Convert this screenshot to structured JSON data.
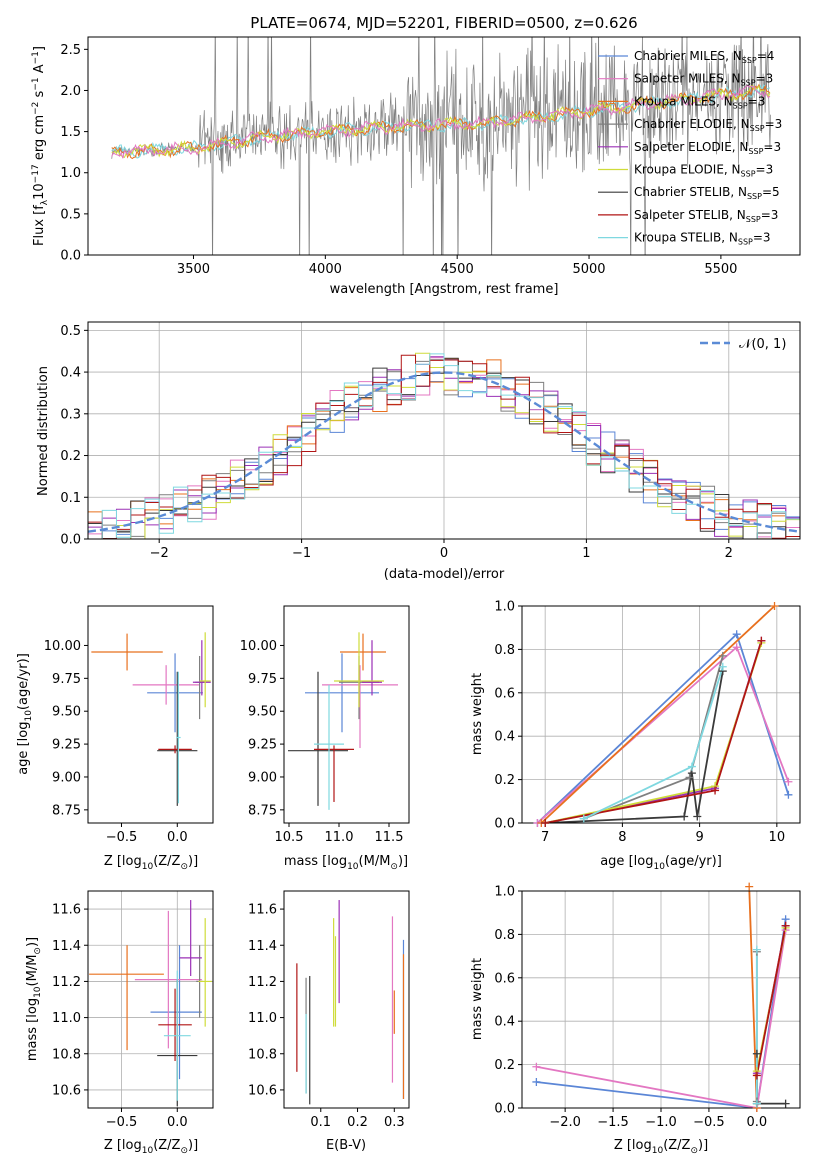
{
  "figure": {
    "title": "PLATE=0674, MJD=52201, FIBERID=0500, z=0.626"
  },
  "colors": {
    "Chabrier MILES": "#5b86d6",
    "Salpeter MILES": "#e377c2",
    "Kroupa MILES": "#e8701e",
    "Chabrier ELODIE": "#7f7f7f",
    "Salpeter ELODIE": "#9b30b6",
    "Kroupa ELODIE": "#cfdc3a",
    "Chabrier STELIB": "#3a3a3a",
    "Salpeter STELIB": "#b01515",
    "Kroupa STELIB": "#7fd8e0"
  },
  "chart_data": [
    {
      "id": "spectrum",
      "type": "line",
      "xlabel": "wavelength [Angstrom, rest frame]",
      "ylabel": "Flux [f_λ 10^-17 erg cm^-2 s^-1 A^-1]",
      "xlim": [
        3100,
        5800
      ],
      "ylim": [
        0,
        2.65
      ],
      "xticks": [
        3500,
        4000,
        4500,
        5000,
        5500
      ],
      "yticks": [
        0.0,
        0.5,
        1.0,
        1.5,
        2.0,
        2.5
      ],
      "legend_position": "top-right",
      "legend": [
        {
          "name": "Chabrier MILES",
          "nssp": "4"
        },
        {
          "name": "Salpeter MILES",
          "nssp": "3"
        },
        {
          "name": "Kroupa MILES",
          "nssp": "3"
        },
        {
          "name": "Chabrier ELODIE",
          "nssp": "3"
        },
        {
          "name": "Salpeter ELODIE",
          "nssp": "3"
        },
        {
          "name": "Kroupa ELODIE",
          "nssp": "3"
        },
        {
          "name": "Chabrier STELIB",
          "nssp": "5"
        },
        {
          "name": "Salpeter STELIB",
          "nssp": "3"
        },
        {
          "name": "Kroupa STELIB",
          "nssp": "3"
        }
      ],
      "data_series": {
        "name": "data",
        "wl_range": [
          3190,
          5690
        ],
        "trend": [
          [
            3200,
            1.25
          ],
          [
            3500,
            1.3
          ],
          [
            3800,
            1.45
          ],
          [
            4200,
            1.55
          ],
          [
            4600,
            1.6
          ],
          [
            5000,
            1.75
          ],
          [
            5500,
            1.95
          ],
          [
            5690,
            2.0
          ]
        ]
      },
      "model_trend": [
        [
          3200,
          1.25
        ],
        [
          3500,
          1.3
        ],
        [
          3800,
          1.45
        ],
        [
          4200,
          1.55
        ],
        [
          4600,
          1.6
        ],
        [
          5000,
          1.75
        ],
        [
          5500,
          1.95
        ],
        [
          5690,
          2.0
        ]
      ]
    },
    {
      "id": "residuals",
      "type": "line",
      "xlabel": "(data-model)/error",
      "ylabel": "Normed distribution",
      "xlim": [
        -2.5,
        2.5
      ],
      "ylim": [
        0,
        0.52
      ],
      "xticks": [
        -2,
        -1,
        0,
        1,
        2
      ],
      "yticks": [
        0.0,
        0.1,
        0.2,
        0.3,
        0.4,
        0.5
      ],
      "gauss_label": "𝒩(0, 1)",
      "legend_position": "top-right",
      "grid": true
    },
    {
      "id": "age_vs_Z",
      "type": "scatter",
      "xlabel": "Z [log10(Z/Z⊙)]",
      "ylabel": "age [log10(age/yr)]",
      "xlim": [
        -0.8,
        0.32
      ],
      "ylim": [
        8.65,
        10.3
      ],
      "xticks": [
        -0.5,
        0.0
      ],
      "yticks": [
        8.75,
        9.0,
        9.25,
        9.5,
        9.75,
        10.0
      ],
      "points": [
        {
          "series": "Chabrier MILES",
          "x": -0.02,
          "y": 9.64,
          "xerr": [
            0.25,
            0.25
          ],
          "yerr": [
            0.3,
            0.3
          ]
        },
        {
          "series": "Salpeter MILES",
          "x": -0.1,
          "y": 9.7,
          "xerr": [
            0.3,
            0.3
          ],
          "yerr": [
            0.15,
            0.15
          ]
        },
        {
          "series": "Kroupa MILES",
          "x": -0.45,
          "y": 9.95,
          "xerr": [
            0.32,
            0.32
          ],
          "yerr": [
            0.14,
            0.14
          ]
        },
        {
          "series": "Chabrier ELODIE",
          "x": 0.2,
          "y": 9.72,
          "xerr": [
            0.04,
            0.04
          ],
          "yerr": [
            0.28,
            0.2
          ]
        },
        {
          "series": "Salpeter ELODIE",
          "x": 0.22,
          "y": 9.72,
          "xerr": [
            0.08,
            0.08
          ],
          "yerr": [
            0.1,
            0.32
          ]
        },
        {
          "series": "Kroupa ELODIE",
          "x": 0.25,
          "y": 9.73,
          "xerr": [
            0.05,
            0.05
          ],
          "yerr": [
            0.2,
            0.37
          ]
        },
        {
          "series": "Chabrier STELIB",
          "x": 0.0,
          "y": 9.2,
          "xerr": [
            0.18,
            0.18
          ],
          "yerr": [
            0.42,
            0.6
          ]
        },
        {
          "series": "Salpeter STELIB",
          "x": -0.02,
          "y": 9.21,
          "xerr": [
            0.15,
            0.15
          ],
          "yerr": [
            0.03,
            0.03
          ]
        },
        {
          "series": "Kroupa STELIB",
          "x": 0.01,
          "y": 9.3,
          "xerr": [
            0.02,
            0.02
          ],
          "yerr": [
            0.5,
            0.5
          ]
        }
      ]
    },
    {
      "id": "age_vs_mass",
      "type": "scatter",
      "xlabel": "mass [log10(M/M⊙)]",
      "ylabel": "",
      "xlim": [
        10.45,
        11.7
      ],
      "ylim": [
        8.65,
        10.3
      ],
      "xticks": [
        10.5,
        11.0,
        11.5
      ],
      "yticks": [
        8.75,
        9.0,
        9.25,
        9.5,
        9.75,
        10.0
      ],
      "points": [
        {
          "series": "Chabrier MILES",
          "x": 11.03,
          "y": 9.64,
          "xerr": [
            0.37,
            0.37
          ],
          "yerr": [
            0.3,
            0.3
          ]
        },
        {
          "series": "Salpeter MILES",
          "x": 11.21,
          "y": 9.7,
          "xerr": [
            0.38,
            0.38
          ],
          "yerr": [
            0.48,
            0.15
          ]
        },
        {
          "series": "Kroupa MILES",
          "x": 11.24,
          "y": 9.95,
          "xerr": [
            0.23,
            0.23
          ],
          "yerr": [
            0.14,
            0.14
          ]
        },
        {
          "series": "Chabrier ELODIE",
          "x": 11.2,
          "y": 9.72,
          "xerr": [
            0.2,
            0.2
          ],
          "yerr": [
            0.28,
            0.2
          ]
        },
        {
          "series": "Salpeter ELODIE",
          "x": 11.33,
          "y": 9.72,
          "xerr": [
            0.1,
            0.1
          ],
          "yerr": [
            0.1,
            0.32
          ]
        },
        {
          "series": "Kroupa ELODIE",
          "x": 11.2,
          "y": 9.73,
          "xerr": [
            0.25,
            0.25
          ],
          "yerr": [
            0.2,
            0.37
          ]
        },
        {
          "series": "Chabrier STELIB",
          "x": 10.79,
          "y": 9.2,
          "xerr": [
            0.3,
            0.3
          ],
          "yerr": [
            0.42,
            0.6
          ]
        },
        {
          "series": "Salpeter STELIB",
          "x": 10.95,
          "y": 9.21,
          "xerr": [
            0.2,
            0.2
          ],
          "yerr": [
            0.4,
            0.03
          ]
        },
        {
          "series": "Kroupa STELIB",
          "x": 10.9,
          "y": 9.25,
          "xerr": [
            0.15,
            0.15
          ],
          "yerr": [
            0.5,
            0.45
          ]
        }
      ]
    },
    {
      "id": "mass_weight_vs_age",
      "type": "line",
      "xlabel": "age [log10(age/yr)]",
      "ylabel": "mass weight",
      "xlim": [
        6.7,
        10.3
      ],
      "ylim": [
        0,
        1.0
      ],
      "xticks": [
        7,
        8,
        9,
        10
      ],
      "yticks": [
        0.0,
        0.2,
        0.4,
        0.6,
        0.8,
        1.0
      ],
      "grid": true,
      "series": [
        {
          "name": "Chabrier MILES",
          "points": [
            [
              6.9,
              0.0
            ],
            [
              9.48,
              0.87
            ],
            [
              10.15,
              0.13
            ]
          ]
        },
        {
          "name": "Salpeter MILES",
          "points": [
            [
              6.9,
              0.0
            ],
            [
              9.48,
              0.81
            ],
            [
              10.15,
              0.19
            ]
          ]
        },
        {
          "name": "Kroupa MILES",
          "points": [
            [
              6.95,
              0.0
            ],
            [
              9.97,
              1.0
            ]
          ]
        },
        {
          "name": "Chabrier ELODIE",
          "points": [
            [
              7.5,
              0.02
            ],
            [
              8.87,
              0.21
            ],
            [
              9.3,
              0.77
            ]
          ]
        },
        {
          "name": "Salpeter ELODIE",
          "points": [
            [
              7.0,
              0.0
            ],
            [
              9.2,
              0.16
            ],
            [
              9.8,
              0.84
            ]
          ]
        },
        {
          "name": "Kroupa ELODIE",
          "points": [
            [
              7.0,
              0.0
            ],
            [
              9.2,
              0.17
            ],
            [
              9.8,
              0.83
            ]
          ]
        },
        {
          "name": "Chabrier STELIB",
          "points": [
            [
              7.0,
              0.0
            ],
            [
              8.8,
              0.03
            ],
            [
              8.9,
              0.23
            ],
            [
              8.97,
              0.03
            ],
            [
              9.3,
              0.7
            ]
          ]
        },
        {
          "name": "Salpeter STELIB",
          "points": [
            [
              7.0,
              0.0
            ],
            [
              9.2,
              0.15
            ],
            [
              9.8,
              0.84
            ]
          ]
        },
        {
          "name": "Kroupa STELIB",
          "points": [
            [
              7.5,
              0.02
            ],
            [
              8.9,
              0.26
            ],
            [
              9.3,
              0.72
            ]
          ]
        }
      ]
    },
    {
      "id": "mass_vs_Z",
      "type": "scatter",
      "xlabel": "Z [log10(Z/Z⊙)]",
      "ylabel": "mass [log10(M/M⊙)]",
      "xlim": [
        -0.8,
        0.32
      ],
      "ylim": [
        10.5,
        11.7
      ],
      "xticks": [
        -0.5,
        0.0
      ],
      "yticks": [
        10.6,
        10.8,
        11.0,
        11.2,
        11.4,
        11.6
      ],
      "grid": true,
      "points": [
        {
          "series": "Chabrier MILES",
          "x": 0.02,
          "y": 11.03,
          "xerr": [
            0.26,
            0.2
          ],
          "yerr": [
            0.37,
            0.37
          ]
        },
        {
          "series": "Salpeter MILES",
          "x": -0.08,
          "y": 11.21,
          "xerr": [
            0.3,
            0.3
          ],
          "yerr": [
            0.38,
            0.38
          ]
        },
        {
          "series": "Kroupa MILES",
          "x": -0.45,
          "y": 11.24,
          "xerr": [
            0.34,
            0.33
          ],
          "yerr": [
            0.42,
            0.16
          ]
        },
        {
          "series": "Chabrier ELODIE",
          "x": 0.2,
          "y": 11.2,
          "xerr": [
            0.03,
            0.03
          ],
          "yerr": [
            0.2,
            0.2
          ]
        },
        {
          "series": "Salpeter ELODIE",
          "x": 0.12,
          "y": 11.33,
          "xerr": [
            0.1,
            0.1
          ],
          "yerr": [
            0.1,
            0.32
          ]
        },
        {
          "series": "Kroupa ELODIE",
          "x": 0.25,
          "y": 11.2,
          "xerr": [
            0.06,
            0.06
          ],
          "yerr": [
            0.25,
            0.35
          ]
        },
        {
          "series": "Chabrier STELIB",
          "x": 0.0,
          "y": 10.79,
          "xerr": [
            0.18,
            0.18
          ],
          "yerr": [
            0.28,
            0.42
          ]
        },
        {
          "series": "Salpeter STELIB",
          "x": -0.02,
          "y": 10.96,
          "xerr": [
            0.15,
            0.15
          ],
          "yerr": [
            0.2,
            0.2
          ]
        },
        {
          "series": "Kroupa STELIB",
          "x": 0.0,
          "y": 10.9,
          "xerr": [
            0.12,
            0.12
          ],
          "yerr": [
            0.36,
            0.36
          ]
        }
      ]
    },
    {
      "id": "mass_vs_ebv",
      "type": "scatter",
      "xlabel": "E(B-V)",
      "ylabel": "",
      "xlim": [
        0.0,
        0.34
      ],
      "ylim": [
        10.5,
        11.7
      ],
      "xticks": [
        0.1,
        0.2,
        0.3
      ],
      "yticks": [
        10.6,
        10.8,
        11.0,
        11.2,
        11.4,
        11.6
      ],
      "points": [
        {
          "series": "Chabrier MILES",
          "x": 0.325,
          "y": 11.0,
          "yerr": [
            0.45,
            0.43
          ]
        },
        {
          "series": "Salpeter MILES",
          "x": 0.295,
          "y": 11.14,
          "yerr": [
            0.5,
            0.42
          ]
        },
        {
          "series": "Kroupa MILES",
          "x": 0.3,
          "y": 11.03,
          "yerr": [
            0.12,
            0.12
          ]
        },
        {
          "series": "Chabrier ELODIE",
          "x": 0.06,
          "y": 10.9,
          "yerr": [
            0.32,
            0.32
          ]
        },
        {
          "series": "Salpeter ELODIE",
          "x": 0.15,
          "y": 11.33,
          "yerr": [
            0.25,
            0.32
          ]
        },
        {
          "series": "Kroupa ELODIE",
          "x": 0.14,
          "y": 11.2,
          "yerr": [
            0.25,
            0.25
          ]
        },
        {
          "series": "Chabrier STELIB",
          "x": 0.07,
          "y": 10.9,
          "yerr": [
            0.38,
            0.33
          ]
        },
        {
          "series": "Salpeter STELIB",
          "x": 0.035,
          "y": 11.0,
          "yerr": [
            0.3,
            0.3
          ]
        },
        {
          "series": "Kroupa STELIB",
          "x": 0.06,
          "y": 10.8,
          "yerr": [
            0.22,
            0.22
          ]
        },
        {
          "series": "Kroupa ELODIE",
          "x": 0.135,
          "y": 11.25,
          "yerr": [
            0.3,
            0.3
          ]
        },
        {
          "series": "Kroupa MILES",
          "x": 0.325,
          "y": 10.95,
          "yerr": [
            0.4,
            0.4
          ]
        }
      ]
    },
    {
      "id": "mass_weight_vs_Z",
      "type": "line",
      "xlabel": "Z [log10(Z/Z⊙)]",
      "ylabel": "mass weight",
      "xlim": [
        -2.45,
        0.45
      ],
      "ylim": [
        0,
        1.0
      ],
      "xticks": [
        -2.0,
        -1.5,
        -1.0,
        -0.5,
        0.0
      ],
      "yticks": [
        0.0,
        0.2,
        0.4,
        0.6,
        0.8,
        1.0
      ],
      "grid": true,
      "series": [
        {
          "name": "Chabrier MILES",
          "points": [
            [
              -2.3,
              0.12
            ],
            [
              0.0,
              0.0
            ],
            [
              0.3,
              0.87
            ]
          ]
        },
        {
          "name": "Salpeter MILES",
          "points": [
            [
              -2.3,
              0.19
            ],
            [
              0.0,
              0.0
            ],
            [
              0.3,
              0.82
            ]
          ]
        },
        {
          "name": "Kroupa MILES",
          "points": [
            [
              -0.08,
              1.02
            ],
            [
              0.0,
              0.0
            ]
          ]
        },
        {
          "name": "Chabrier ELODIE",
          "points": [
            [
              0.0,
              0.72
            ],
            [
              0.0,
              0.03
            ]
          ]
        },
        {
          "name": "Salpeter ELODIE",
          "points": [
            [
              0.0,
              0.16
            ],
            [
              0.3,
              0.84
            ]
          ]
        },
        {
          "name": "Kroupa ELODIE",
          "points": [
            [
              0.0,
              0.17
            ],
            [
              0.3,
              0.83
            ]
          ]
        },
        {
          "name": "Chabrier STELIB",
          "points": [
            [
              0.0,
              0.25
            ],
            [
              0.0,
              0.02
            ],
            [
              0.3,
              0.02
            ]
          ]
        },
        {
          "name": "Salpeter STELIB",
          "points": [
            [
              0.0,
              0.15
            ],
            [
              0.3,
              0.84
            ]
          ]
        },
        {
          "name": "Kroupa STELIB",
          "points": [
            [
              0.0,
              0.73
            ],
            [
              0.0,
              0.02
            ]
          ]
        }
      ]
    }
  ]
}
